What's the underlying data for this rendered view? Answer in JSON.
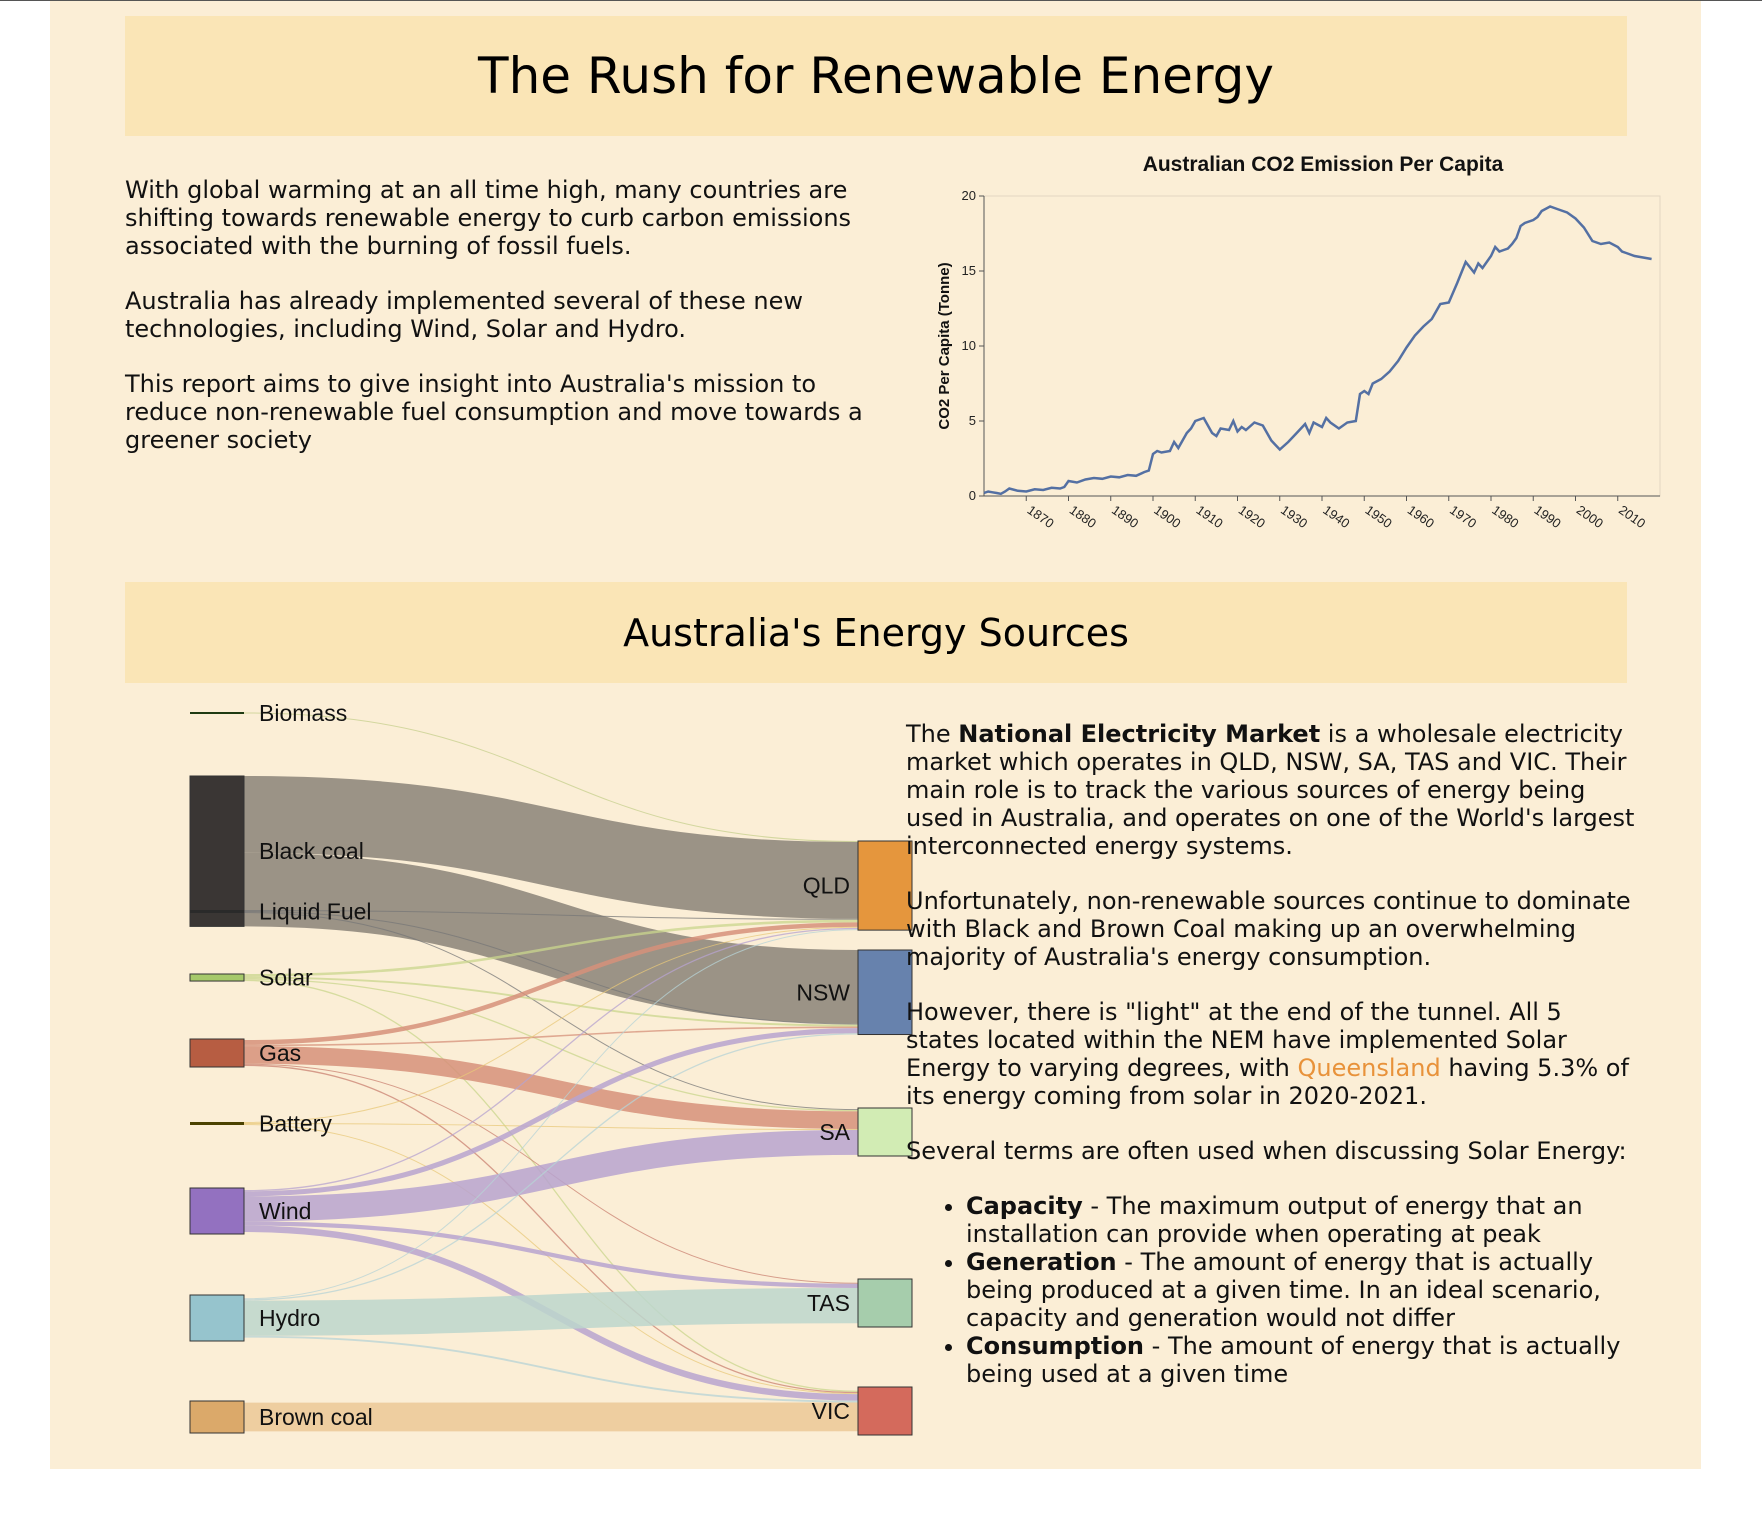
{
  "header": {
    "title": "The Rush for Renewable Energy"
  },
  "intro": {
    "p1": "With global warming at an all time high, many countries are shifting towards renewable energy to curb carbon emissions associated with the burning of fossil fuels.",
    "p2": "Australia has already implemented several of these new technologies, including Wind, Solar and Hydro.",
    "p3": "This report aims to give insight into Australia's mission to reduce non-renewable fuel consumption and move towards a greener society"
  },
  "section2": {
    "title": "Australia's Energy Sources"
  },
  "description": {
    "p1_pre": "The ",
    "p1_bold": "National Electricity Market",
    "p1_post": " is a wholesale electricity market which operates in QLD, NSW, SA, TAS and VIC. Their main role is to track the various sources of energy being used in Australia, and operates on one of the World's largest interconnected energy systems.",
    "p2": "Unfortunately, non-renewable sources continue to dominate with Black and Brown Coal making up an overwhelming majority of Australia's energy consumption.",
    "p3_pre": "However, there is \"light\" at the end of the tunnel. All 5 states located within the NEM have implemented Solar Energy to varying degrees, with ",
    "p3_highlight": "Queensland",
    "p3_post": " having 5.3% of its energy coming from solar in 2020-2021.",
    "p4": "Several terms are often used when discussing Solar Energy:",
    "terms": [
      {
        "term": "Capacity",
        "def": " - The maximum output of energy that an installation can provide when operating at peak"
      },
      {
        "term": "Generation",
        "def": " - The amount of energy that is actually being produced at a given time. In an ideal scenario, capacity and generation would not differ"
      },
      {
        "term": "Consumption",
        "def": " - The amount of energy that is actually being used at a given time"
      }
    ]
  },
  "colors": {
    "page_bg": "#fbeed6",
    "banner_bg": "#fae5b6",
    "line": "#5470a3",
    "highlight": "#e8923a"
  },
  "chart_data": [
    {
      "type": "line",
      "title": "Australian CO2 Emission Per Capita",
      "xlabel": "",
      "ylabel": "CO2 Per Capita (Tonne)",
      "xlim": [
        1860,
        2020
      ],
      "ylim": [
        0,
        20
      ],
      "x_ticks": [
        "1870",
        "1880",
        "1890",
        "1900",
        "1910",
        "1920",
        "1930",
        "1940",
        "1950",
        "1960",
        "1970",
        "1980",
        "1990",
        "2000",
        "2010"
      ],
      "y_ticks": [
        "0",
        "5",
        "10",
        "15",
        "20"
      ],
      "x": [
        1860,
        1861,
        1862,
        1863,
        1864,
        1865,
        1866,
        1868,
        1870,
        1872,
        1874,
        1876,
        1878,
        1879,
        1880,
        1882,
        1884,
        1886,
        1888,
        1890,
        1892,
        1894,
        1896,
        1898,
        1899,
        1900,
        1901,
        1902,
        1904,
        1905,
        1906,
        1908,
        1909,
        1910,
        1912,
        1914,
        1915,
        1916,
        1918,
        1919,
        1920,
        1921,
        1922,
        1924,
        1926,
        1928,
        1929,
        1930,
        1932,
        1934,
        1936,
        1937,
        1938,
        1940,
        1941,
        1942,
        1944,
        1946,
        1948,
        1949,
        1950,
        1951,
        1952,
        1954,
        1956,
        1958,
        1960,
        1962,
        1964,
        1966,
        1968,
        1970,
        1972,
        1974,
        1976,
        1977,
        1978,
        1980,
        1981,
        1982,
        1983,
        1984,
        1985,
        1986,
        1987,
        1988,
        1990,
        1991,
        1992,
        1994,
        1996,
        1998,
        2000,
        2002,
        2004,
        2006,
        2008,
        2010,
        2011,
        2012,
        2014,
        2016,
        2018
      ],
      "y": [
        0.2,
        0.3,
        0.25,
        0.2,
        0.15,
        0.3,
        0.5,
        0.35,
        0.3,
        0.45,
        0.4,
        0.55,
        0.5,
        0.6,
        1.0,
        0.9,
        1.1,
        1.2,
        1.15,
        1.3,
        1.25,
        1.4,
        1.35,
        1.6,
        1.7,
        2.8,
        3.0,
        2.9,
        3.0,
        3.6,
        3.2,
        4.2,
        4.5,
        5.0,
        5.2,
        4.2,
        4.0,
        4.5,
        4.4,
        5.0,
        4.3,
        4.6,
        4.4,
        4.9,
        4.7,
        3.7,
        3.4,
        3.1,
        3.6,
        4.2,
        4.8,
        4.2,
        4.9,
        4.6,
        5.2,
        4.9,
        4.5,
        4.9,
        5.0,
        6.8,
        7.0,
        6.8,
        7.5,
        7.8,
        8.3,
        9.0,
        9.9,
        10.7,
        11.3,
        11.8,
        12.8,
        12.9,
        14.2,
        15.6,
        14.9,
        15.5,
        15.2,
        16.0,
        16.6,
        16.3,
        16.4,
        16.5,
        16.8,
        17.2,
        18.0,
        18.2,
        18.4,
        18.6,
        19.0,
        19.3,
        19.1,
        18.9,
        18.5,
        17.9,
        17.0,
        16.8,
        16.9,
        16.6,
        16.3,
        16.2,
        16.0,
        15.9,
        15.8
      ]
    },
    {
      "type": "sankey",
      "title": "Australia's Energy Sources",
      "sources": [
        {
          "name": "Biomass",
          "color": "#1e3a12"
        },
        {
          "name": "Black coal",
          "color": "#3a3634"
        },
        {
          "name": "Liquid Fuel",
          "color": "#2a2a2a"
        },
        {
          "name": "Solar",
          "color": "#a6c96a"
        },
        {
          "name": "Gas",
          "color": "#b75d42"
        },
        {
          "name": "Battery",
          "color": "#4b4200"
        },
        {
          "name": "Wind",
          "color": "#9371c0"
        },
        {
          "name": "Hydro",
          "color": "#96c4cd"
        },
        {
          "name": "Brown coal",
          "color": "#dba96a"
        }
      ],
      "targets": [
        {
          "name": "QLD",
          "color": "#e5963d"
        },
        {
          "name": "NSW",
          "color": "#6782ad"
        },
        {
          "name": "SA",
          "color": "#d2ecb4"
        },
        {
          "name": "TAS",
          "color": "#a6cdac"
        },
        {
          "name": "VIC",
          "color": "#d46a5c"
        }
      ],
      "links": [
        {
          "source": "Biomass",
          "target": "QLD",
          "value": 0.3,
          "color": "#c6cf8c"
        },
        {
          "source": "Black coal",
          "target": "QLD",
          "value": 24,
          "color": "#8a8378"
        },
        {
          "source": "Black coal",
          "target": "NSW",
          "value": 23,
          "color": "#8a8378"
        },
        {
          "source": "Liquid Fuel",
          "target": "QLD",
          "value": 0.3,
          "color": "#777777"
        },
        {
          "source": "Liquid Fuel",
          "target": "NSW",
          "value": 0.3,
          "color": "#777777"
        },
        {
          "source": "Liquid Fuel",
          "target": "SA",
          "value": 0.3,
          "color": "#777777"
        },
        {
          "source": "Solar",
          "target": "QLD",
          "value": 0.8,
          "color": "#c9d58c"
        },
        {
          "source": "Solar",
          "target": "NSW",
          "value": 0.6,
          "color": "#c9d58c"
        },
        {
          "source": "Solar",
          "target": "SA",
          "value": 0.4,
          "color": "#c9d58c"
        },
        {
          "source": "Solar",
          "target": "VIC",
          "value": 0.4,
          "color": "#c9d58c"
        },
        {
          "source": "Gas",
          "target": "QLD",
          "value": 1.4,
          "color": "#d6907a"
        },
        {
          "source": "Gas",
          "target": "NSW",
          "value": 0.5,
          "color": "#d6907a"
        },
        {
          "source": "Gas",
          "target": "SA",
          "value": 5.5,
          "color": "#d6907a"
        },
        {
          "source": "Gas",
          "target": "TAS",
          "value": 0.3,
          "color": "#c98070"
        },
        {
          "source": "Gas",
          "target": "VIC",
          "value": 0.4,
          "color": "#c98070"
        },
        {
          "source": "Battery",
          "target": "QLD",
          "value": 0.2,
          "color": "#e8c87a"
        },
        {
          "source": "Battery",
          "target": "SA",
          "value": 0.2,
          "color": "#e8c87a"
        },
        {
          "source": "Battery",
          "target": "VIC",
          "value": 0.2,
          "color": "#e8c87a"
        },
        {
          "source": "Wind",
          "target": "QLD",
          "value": 0.4,
          "color": "#b7a3cf"
        },
        {
          "source": "Wind",
          "target": "NSW",
          "value": 1.6,
          "color": "#b7a3cf"
        },
        {
          "source": "Wind",
          "target": "SA",
          "value": 7.8,
          "color": "#b7a3cf"
        },
        {
          "source": "Wind",
          "target": "TAS",
          "value": 1.3,
          "color": "#b7a3cf"
        },
        {
          "source": "Wind",
          "target": "VIC",
          "value": 2.0,
          "color": "#b7a3cf"
        },
        {
          "source": "Hydro",
          "target": "QLD",
          "value": 0.3,
          "color": "#b7d3d5"
        },
        {
          "source": "Hydro",
          "target": "NSW",
          "value": 0.4,
          "color": "#b7d3d5"
        },
        {
          "source": "Hydro",
          "target": "TAS",
          "value": 11,
          "color": "#bcd6cd"
        },
        {
          "source": "Hydro",
          "target": "VIC",
          "value": 0.6,
          "color": "#b7d3d5"
        },
        {
          "source": "Brown coal",
          "target": "VIC",
          "value": 9,
          "color": "#ebc896"
        }
      ]
    }
  ]
}
